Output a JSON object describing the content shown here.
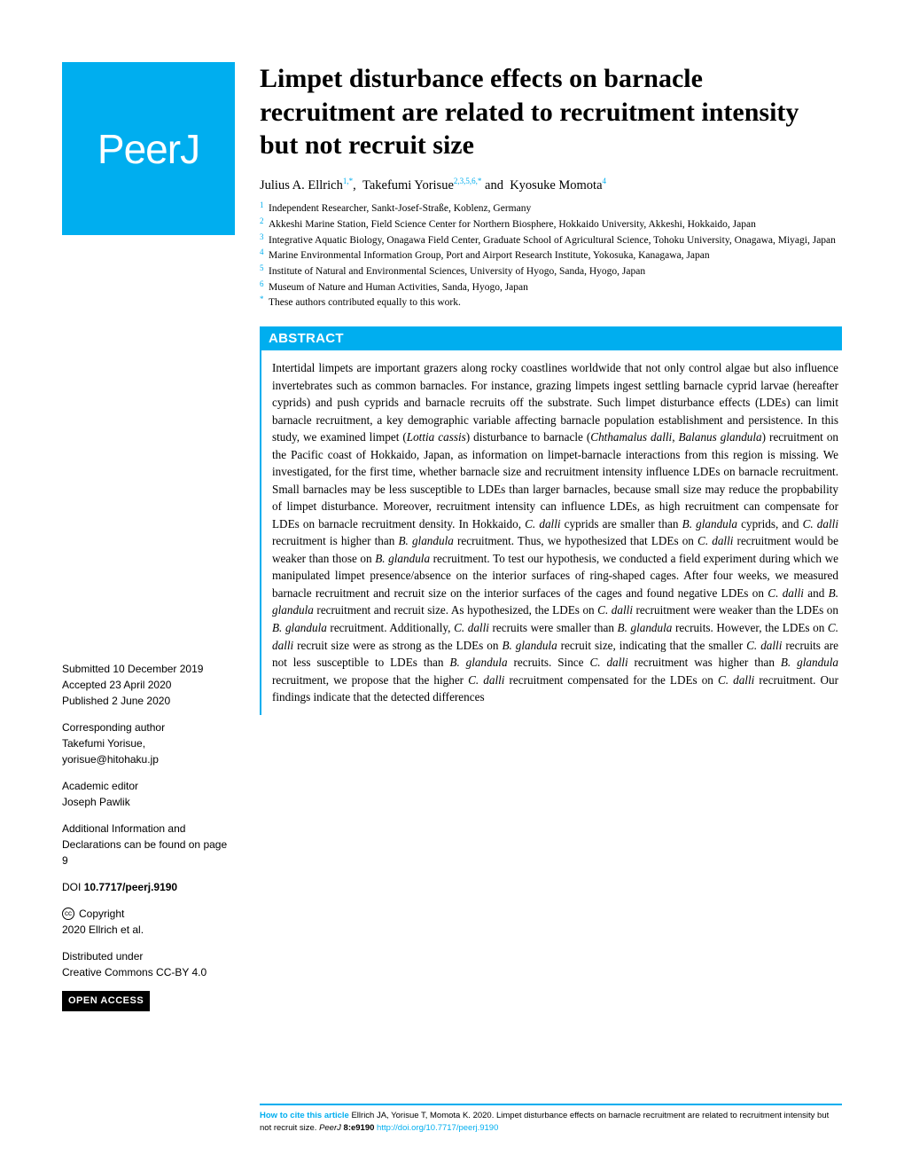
{
  "logo": {
    "text": "PeerJ"
  },
  "title": "Limpet disturbance effects on barnacle recruitment are related to recruitment intensity but not recruit size",
  "authors": {
    "a1_name": "Julius A. Ellrich",
    "a1_sup": "1,*",
    "a2_name": "Takefumi Yorisue",
    "a2_sup": "2,3,5,6,*",
    "a3_name": "Kyosuke Momota",
    "a3_sup": "4"
  },
  "affiliations": {
    "n1": "1",
    "t1": "Independent Researcher, Sankt-Josef-Straße, Koblenz, Germany",
    "n2": "2",
    "t2": "Akkeshi Marine Station, Field Science Center for Northern Biosphere, Hokkaido University, Akkeshi, Hokkaido, Japan",
    "n3": "3",
    "t3": "Integrative Aquatic Biology, Onagawa Field Center, Graduate School of Agricultural Science, Tohoku University, Onagawa, Miyagi, Japan",
    "n4": "4",
    "t4": "Marine Environmental Information Group, Port and Airport Research Institute, Yokosuka, Kanagawa, Japan",
    "n5": "5",
    "t5": "Institute of Natural and Environmental Sciences, University of Hyogo, Sanda, Hyogo, Japan",
    "n6": "6",
    "t6": "Museum of Nature and Human Activities, Sanda, Hyogo, Japan",
    "nstar": "*",
    "tstar": "These authors contributed equally to this work."
  },
  "abstract": {
    "header": "ABSTRACT",
    "text": "Intertidal limpets are important grazers along rocky coastlines worldwide that not only control algae but also influence invertebrates such as common barnacles. For instance, grazing limpets ingest settling barnacle cyprid larvae (hereafter cyprids) and push cyprids and barnacle recruits off the substrate. Such limpet disturbance effects (LDEs) can limit barnacle recruitment, a key demographic variable affecting barnacle population establishment and persistence. In this study, we examined limpet (<em>Lottia cassis</em>) disturbance to barnacle (<em>Chthamalus dalli</em>, <em>Balanus glandula</em>) recruitment on the Pacific coast of Hokkaido, Japan, as information on limpet-barnacle interactions from this region is missing. We investigated, for the first time, whether barnacle size and recruitment intensity influence LDEs on barnacle recruitment. Small barnacles may be less susceptible to LDEs than larger barnacles, because small size may reduce the propbability of limpet disturbance. Moreover, recruitment intensity can influence LDEs, as high recruitment can compensate for LDEs on barnacle recruitment density. In Hokkaido, <em>C. dalli</em> cyprids are smaller than <em>B. glandula</em> cyprids, and <em>C. dalli</em> recruitment is higher than <em>B. glandula</em> recruitment. Thus, we hypothesized that LDEs on <em>C. dalli</em> recruitment would be weaker than those on <em>B. glandula</em> recruitment. To test our hypothesis, we conducted a field experiment during which we manipulated limpet presence/absence on the interior surfaces of ring-shaped cages. After four weeks, we measured barnacle recruitment and recruit size on the interior surfaces of the cages and found negative LDEs on <em>C. dalli</em> and <em>B. glandula</em> recruitment and recruit size. As hypothesized, the LDEs on <em>C. dalli</em> recruitment were weaker than the LDEs on <em>B. glandula</em> recruitment. Additionally, <em>C. dalli</em> recruits were smaller than <em>B. glandula</em> recruits. However, the LDEs on <em>C. dalli</em> recruit size were as strong as the LDEs on <em>B. glandula</em> recruit size, indicating that the smaller <em>C. dalli</em> recruits are not less susceptible to LDEs than <em>B. glandula</em> recruits. Since <em>C. dalli</em> recruitment was higher than <em>B. glandula</em> recruitment, we propose that the higher <em>C. dalli</em> recruitment compensated for the LDEs on <em>C. dalli</em> recruitment. Our findings indicate that the detected differences"
  },
  "meta": {
    "submitted_label": "Submitted",
    "submitted_date": "10 December 2019",
    "accepted_label": "Accepted",
    "accepted_date": "23 April 2020",
    "published_label": "Published",
    "published_date": "2 June 2020",
    "corr_label": "Corresponding author",
    "corr_name": "Takefumi Yorisue,",
    "corr_email": "yorisue@hitohaku.jp",
    "editor_label": "Academic editor",
    "editor_name": "Joseph Pawlik",
    "addl_info": "Additional Information and Declarations can be found on page 9",
    "doi_label": "DOI",
    "doi_value": "10.7717/peerj.9190",
    "copyright_label": "Copyright",
    "copyright_text": "2020 Ellrich et al.",
    "dist_label": "Distributed under",
    "dist_text": "Creative Commons CC-BY 4.0",
    "open_access": "OPEN ACCESS"
  },
  "citation": {
    "lead": "How to cite this article",
    "text": " Ellrich JA, Yorisue T, Momota K. 2020. Limpet disturbance effects on barnacle recruitment are related to recruitment intensity but not recruit size. ",
    "journal": "PeerJ",
    "vol": " 8:e9190 ",
    "link": "http://doi.org/10.7717/peerj.9190"
  },
  "colors": {
    "brand": "#00aeef",
    "text": "#000000",
    "bg": "#ffffff"
  }
}
